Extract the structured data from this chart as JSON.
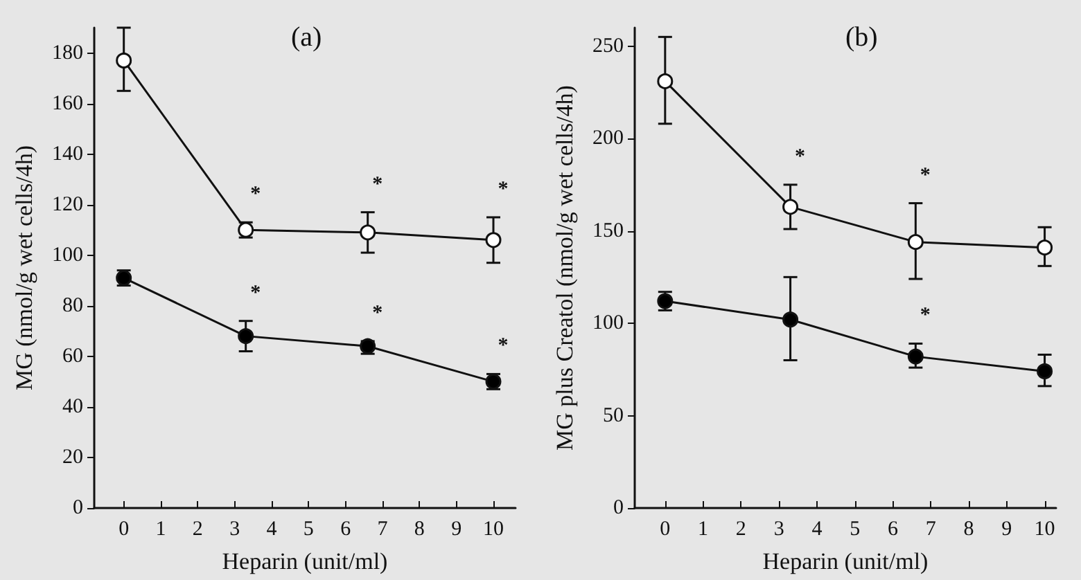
{
  "chart_data": [
    {
      "type": "line",
      "title": "(a)",
      "xlabel": "Heparin (unit/ml)",
      "ylabel": "MG (nmol/g wet cells/4h)",
      "x": [
        0,
        3.3,
        6.6,
        10
      ],
      "xlim": [
        -0.8,
        10.6
      ],
      "xticks": [
        0,
        1,
        2,
        3,
        4,
        5,
        6,
        7,
        8,
        9,
        10
      ],
      "ylim": [
        0,
        190
      ],
      "yticks": [
        0,
        20,
        40,
        60,
        80,
        100,
        120,
        140,
        160,
        180
      ],
      "marker": "circle",
      "grid": false,
      "series": [
        {
          "color": "#ffffff",
          "values": [
            177,
            110,
            109,
            106
          ],
          "errors": [
            [
              165,
              190
            ],
            [
              107,
              113
            ],
            [
              101,
              117
            ],
            [
              97,
              115
            ]
          ]
        },
        {
          "color": "#000000",
          "values": [
            91,
            68,
            64,
            50
          ],
          "errors": [
            [
              88,
              94
            ],
            [
              62,
              74
            ],
            [
              61,
              66
            ],
            [
              47,
              53
            ]
          ]
        }
      ],
      "annotations": [
        {
          "text": "*",
          "x": 3.3,
          "y": 113
        },
        {
          "text": "*",
          "x": 6.6,
          "y": 117
        },
        {
          "text": "*",
          "x": 10,
          "y": 115
        },
        {
          "text": "*",
          "x": 3.3,
          "y": 74
        },
        {
          "text": "*",
          "x": 6.6,
          "y": 66
        },
        {
          "text": "*",
          "x": 10,
          "y": 53
        }
      ]
    },
    {
      "type": "line",
      "title": "(b)",
      "xlabel": "Heparin (unit/ml)",
      "ylabel": "MG plus Creatol (nmol/g wet cells/4h)",
      "x": [
        0,
        3.3,
        6.6,
        10
      ],
      "xlim": [
        -0.8,
        10.3
      ],
      "xticks": [
        0,
        1,
        2,
        3,
        4,
        5,
        6,
        7,
        8,
        9,
        10
      ],
      "ylim": [
        0,
        260
      ],
      "yticks": [
        0,
        50,
        100,
        150,
        200,
        250
      ],
      "marker": "circle",
      "grid": false,
      "series": [
        {
          "color": "#ffffff",
          "values": [
            231,
            163,
            144,
            141
          ],
          "errors": [
            [
              208,
              255
            ],
            [
              151,
              175
            ],
            [
              124,
              165
            ],
            [
              131,
              152
            ]
          ]
        },
        {
          "color": "#000000",
          "values": [
            112,
            102,
            82,
            74
          ],
          "errors": [
            [
              107,
              117
            ],
            [
              80,
              125
            ],
            [
              76,
              89
            ],
            [
              66,
              83
            ]
          ]
        }
      ],
      "annotations": [
        {
          "text": "*",
          "x": 3.3,
          "y": 175
        },
        {
          "text": "*",
          "x": 6.6,
          "y": 165
        },
        {
          "text": "*",
          "x": 6.6,
          "y": 89
        }
      ]
    }
  ]
}
